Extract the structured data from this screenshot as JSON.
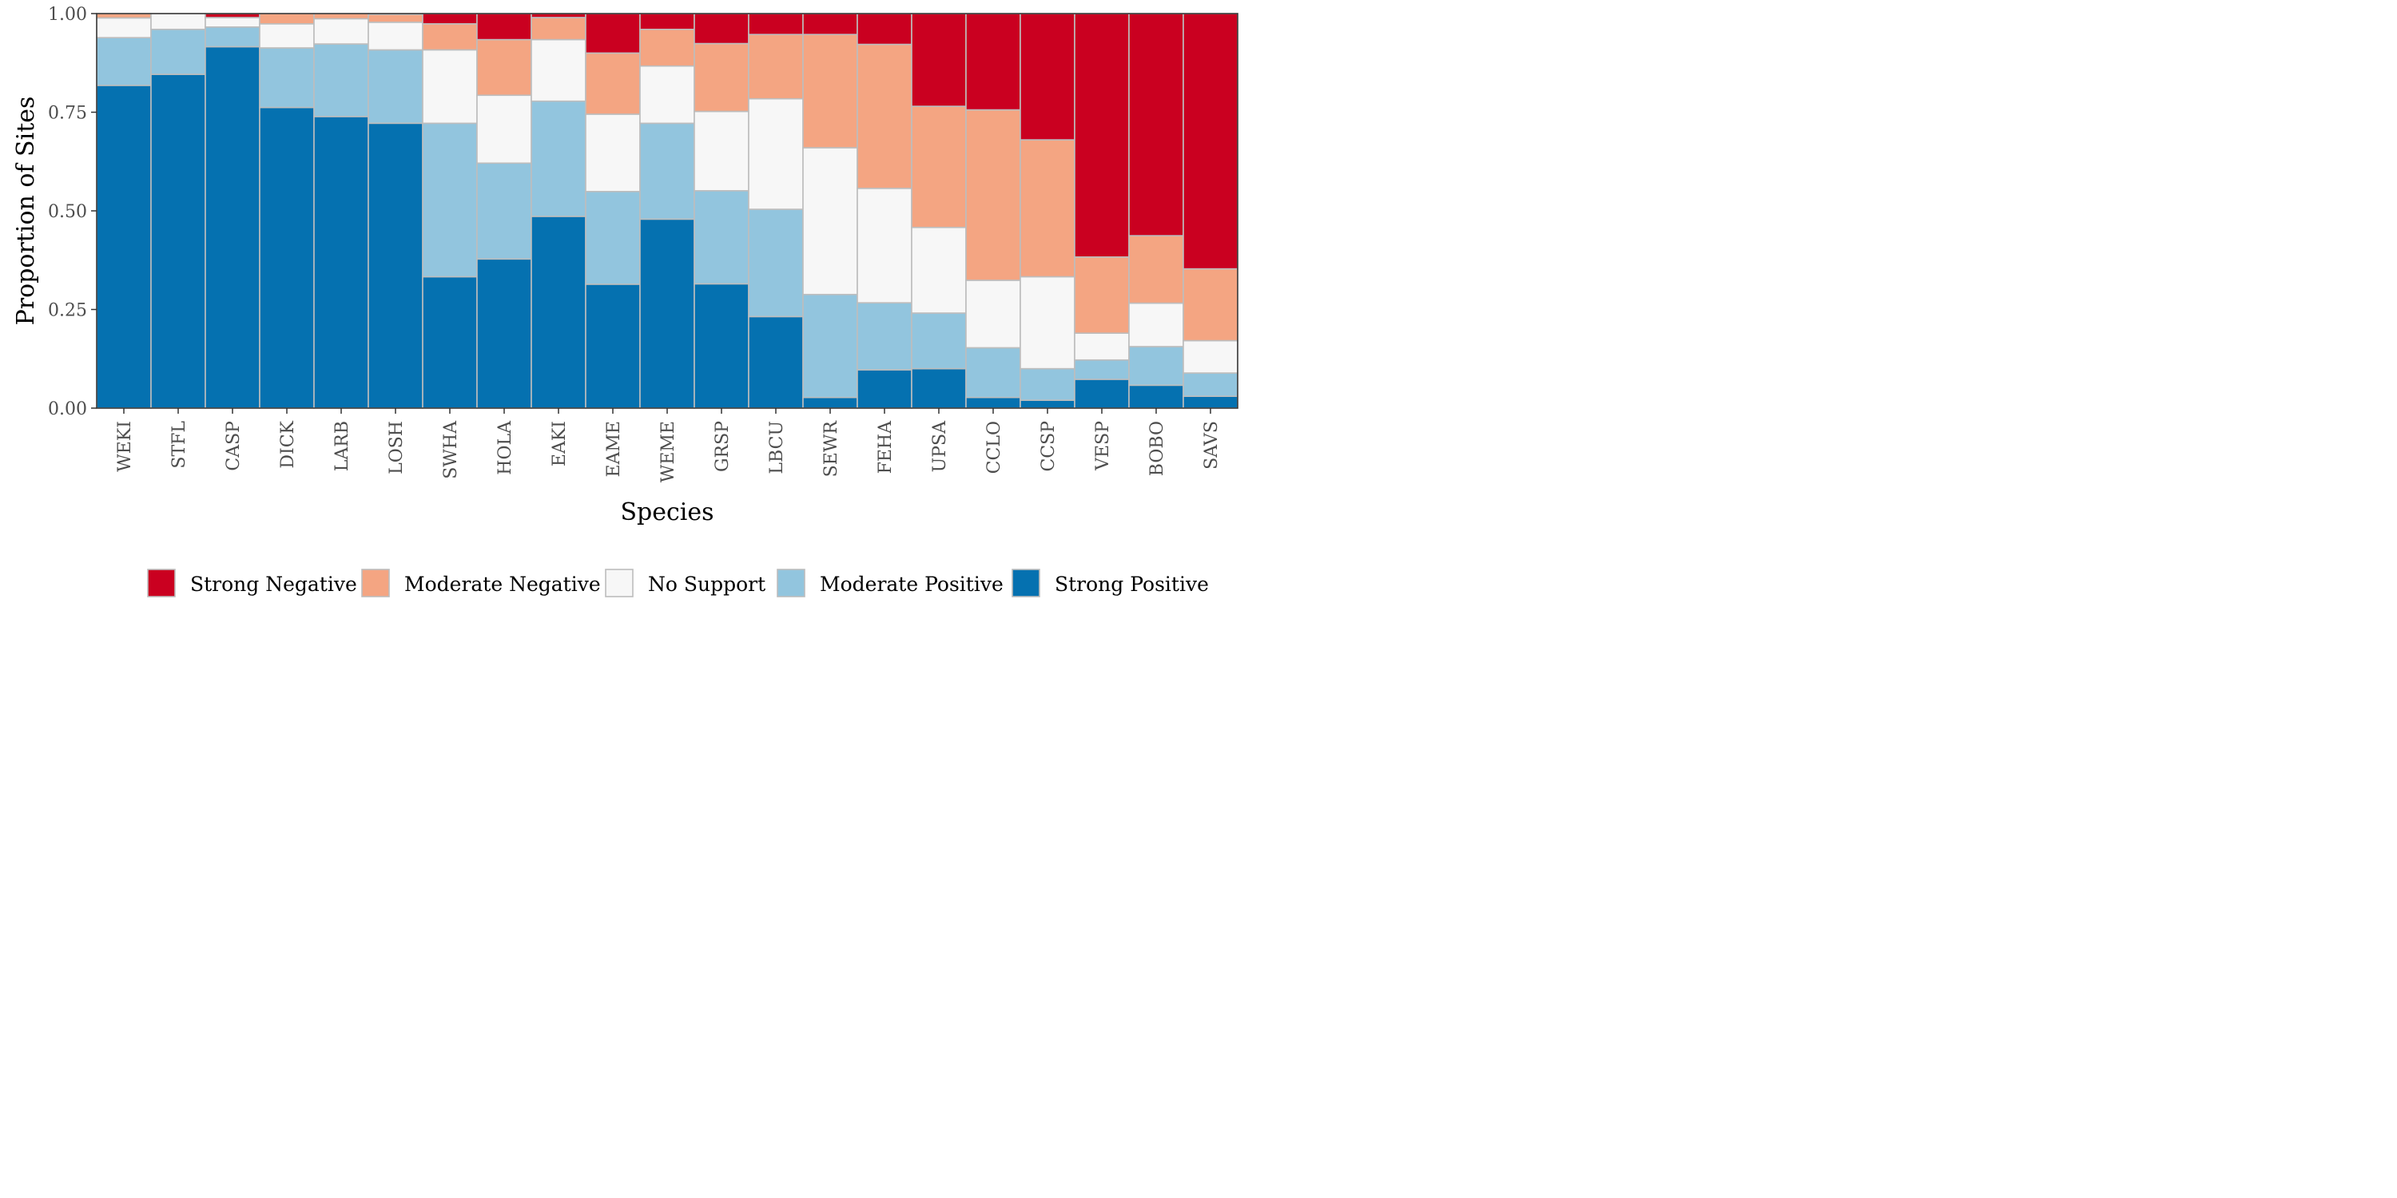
{
  "chart_data": {
    "type": "bar",
    "stacked": true,
    "title": "",
    "xlabel": "Species",
    "ylabel": "Proportion of Sites",
    "ylim": [
      0,
      1
    ],
    "yticks": [
      "0.00",
      "0.25",
      "0.50",
      "0.75",
      "1.00"
    ],
    "ytick_values": [
      0,
      0.25,
      0.5,
      0.75,
      1.0
    ],
    "legend_position": "bottom",
    "categories": [
      "WEKI",
      "STFL",
      "CASP",
      "DICK",
      "LARB",
      "LOSH",
      "SWHA",
      "HOLA",
      "EAKI",
      "EAME",
      "WEME",
      "GRSP",
      "LBCU",
      "SEWR",
      "FEHA",
      "UPSA",
      "CCLO",
      "CCSP",
      "VESP",
      "BOBO",
      "SAVS"
    ],
    "series": [
      {
        "name": "Strong Positive",
        "color": "#0571b0",
        "values": [
          0.818,
          0.846,
          0.916,
          0.762,
          0.739,
          0.722,
          0.333,
          0.378,
          0.486,
          0.314,
          0.479,
          0.315,
          0.232,
          0.027,
          0.097,
          0.1,
          0.027,
          0.02,
          0.073,
          0.058,
          0.03
        ]
      },
      {
        "name": "Moderate Positive",
        "color": "#92c5de",
        "values": [
          0.121,
          0.114,
          0.05,
          0.151,
          0.184,
          0.186,
          0.389,
          0.243,
          0.292,
          0.235,
          0.243,
          0.236,
          0.272,
          0.261,
          0.17,
          0.141,
          0.126,
          0.08,
          0.049,
          0.098,
          0.059
        ]
      },
      {
        "name": "No Support",
        "color": "#f7f7f7",
        "values": [
          0.05,
          0.04,
          0.024,
          0.061,
          0.064,
          0.07,
          0.186,
          0.172,
          0.156,
          0.196,
          0.145,
          0.201,
          0.28,
          0.372,
          0.29,
          0.217,
          0.171,
          0.233,
          0.068,
          0.11,
          0.082
        ]
      },
      {
        "name": "Moderate Negative",
        "color": "#f4a582",
        "values": [
          0.011,
          0.0,
          0.0,
          0.026,
          0.013,
          0.02,
          0.066,
          0.141,
          0.056,
          0.155,
          0.093,
          0.172,
          0.163,
          0.287,
          0.365,
          0.307,
          0.432,
          0.347,
          0.193,
          0.171,
          0.182
        ]
      },
      {
        "name": "Strong Negative",
        "color": "#ca0020",
        "values": [
          0.0,
          0.0,
          0.01,
          0.0,
          0.0,
          0.002,
          0.026,
          0.066,
          0.01,
          0.1,
          0.04,
          0.076,
          0.053,
          0.053,
          0.078,
          0.235,
          0.244,
          0.32,
          0.617,
          0.563,
          0.647
        ]
      }
    ],
    "legend_order": [
      "Strong Negative",
      "Moderate Negative",
      "No Support",
      "Moderate Positive",
      "Strong Positive"
    ]
  }
}
